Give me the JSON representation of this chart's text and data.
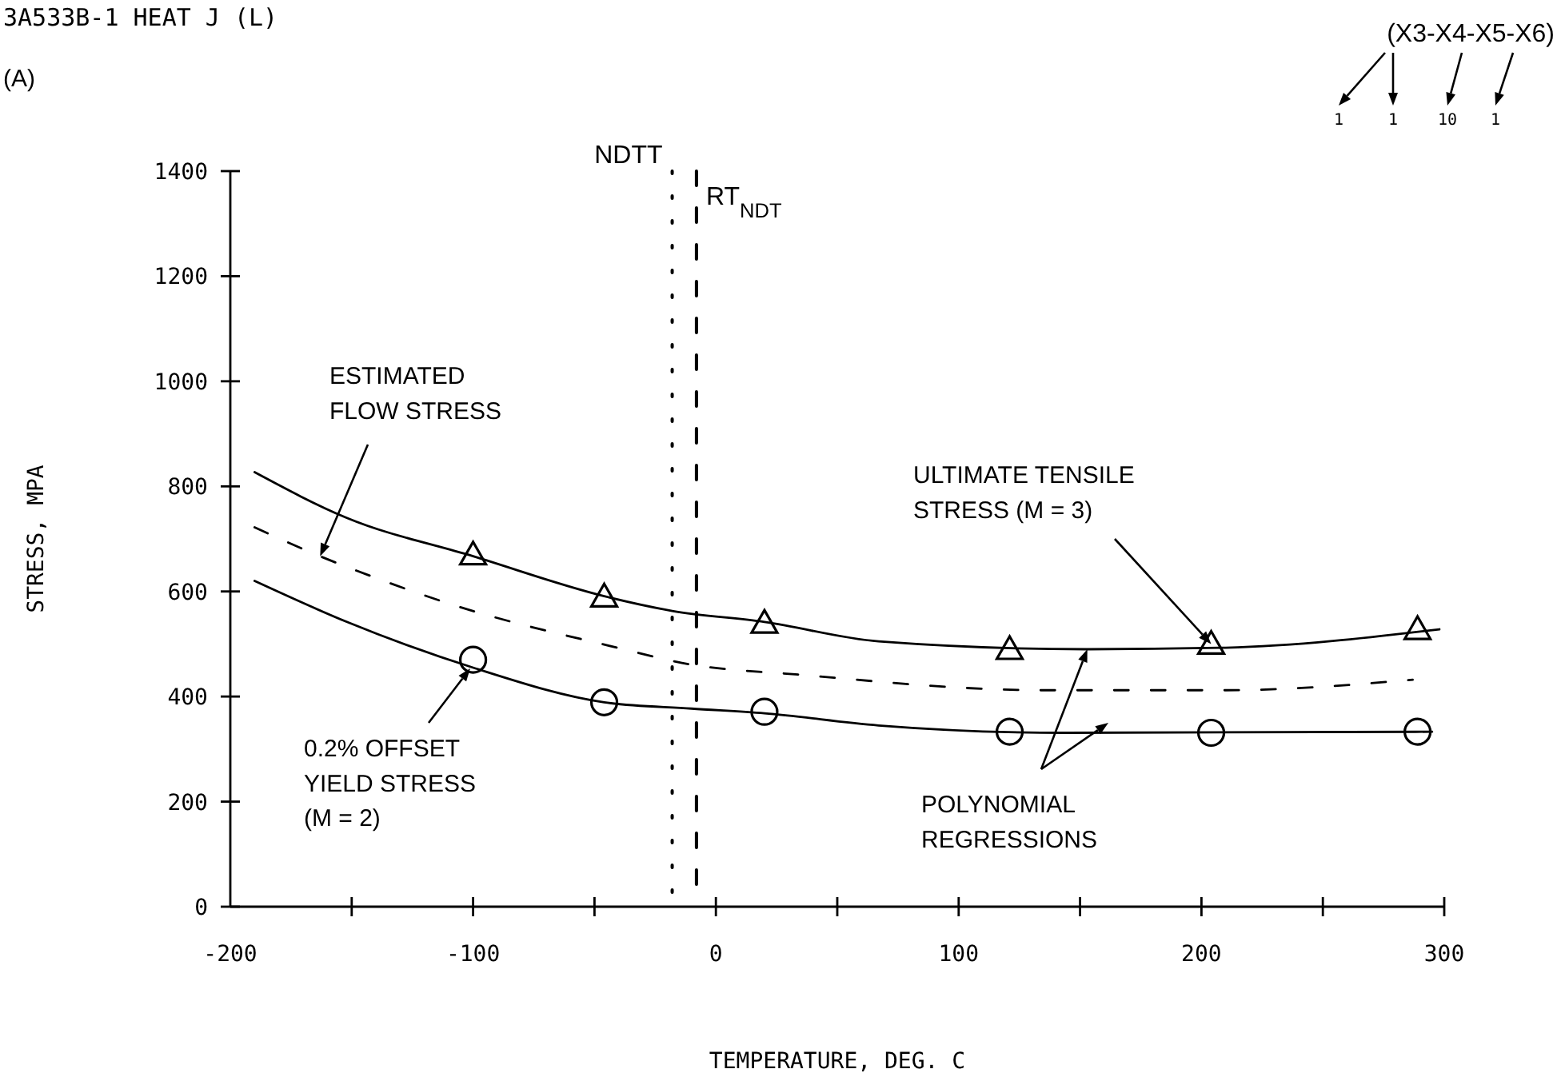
{
  "chart_data": {
    "type": "scatter",
    "xlabel": "TEMPERATURE, DEG. C",
    "ylabel": "STRESS, MPA",
    "xlim": [
      -200,
      300
    ],
    "ylim": [
      0,
      1400
    ],
    "xticks": [
      -200,
      {
        "value": -150,
        "label": null
      },
      -100,
      {
        "value": -50,
        "label": null
      },
      0,
      {
        "value": 50,
        "label": null
      },
      100,
      {
        "value": 150,
        "label": null
      },
      200,
      {
        "value": 250,
        "label": null
      },
      300
    ],
    "yticks": [
      0,
      200,
      400,
      600,
      800,
      1000,
      1200,
      1400
    ],
    "series": [
      {
        "type": "line",
        "color": "#000000",
        "line_style": "solid",
        "x": [
          -190,
          -152,
          -100,
          -46,
          -18,
          20,
          67,
          153,
          210,
          298
        ],
        "values": [
          827,
          740,
          667,
          591,
          563,
          542,
          505,
          490,
          493,
          528
        ]
      },
      {
        "type": "line",
        "color": "#000000",
        "line_style": "solid",
        "x": [
          -190,
          -152,
          -100,
          -46,
          -10,
          20,
          67,
          144,
          295
        ],
        "values": [
          620,
          542,
          455,
          389,
          377,
          368,
          345,
          331,
          333
        ]
      },
      {
        "type": "line",
        "color": "#000000",
        "line_style": "dashed",
        "x": [
          -190,
          -163,
          -139,
          -112,
          -38,
          -14,
          36,
          135,
          210,
          287
        ],
        "values": [
          722,
          667,
          624,
          580,
          490,
          464,
          441,
          412,
          412,
          432
        ]
      },
      {
        "marker": "triangle",
        "color": "#000000",
        "x": [
          -100,
          -46,
          20,
          121,
          204,
          289
        ],
        "values": [
          670,
          590,
          540,
          490,
          500,
          528
        ]
      },
      {
        "marker": "circle",
        "color": "#000000",
        "x": [
          -100,
          -46,
          20,
          121,
          204,
          289
        ],
        "values": [
          470,
          389,
          371,
          333,
          331,
          333
        ]
      }
    ],
    "ref_lines": [
      {
        "axis": "x",
        "value": -18,
        "label": "NDTT",
        "line_style": "dotted",
        "color": "#000000"
      },
      {
        "axis": "x",
        "value": -8,
        "label": "RT$_{NDT}$",
        "line_style": "dashed",
        "color": "#000000"
      }
    ],
    "annotations": [
      "3A533B-1   HEAT J   (L)",
      "(A)",
      "(X3-X4-X5-X6)",
      "1",
      "1",
      "10",
      "1",
      {
        "text": "ESTIMATED\nFLOW STRESS",
        "x": -163,
        "y": 667
      },
      "0.2% OFFSET\nYIELD STRESS\n(M = 2)",
      {
        "text": "ULTIMATE TENSILE\nSTRESS (M = 3)",
        "x": 204,
        "y": 500
      },
      {
        "text": "POLYNOMIAL\nREGRESSIONS",
        "x": 153,
        "y": 490
      }
    ]
  }
}
